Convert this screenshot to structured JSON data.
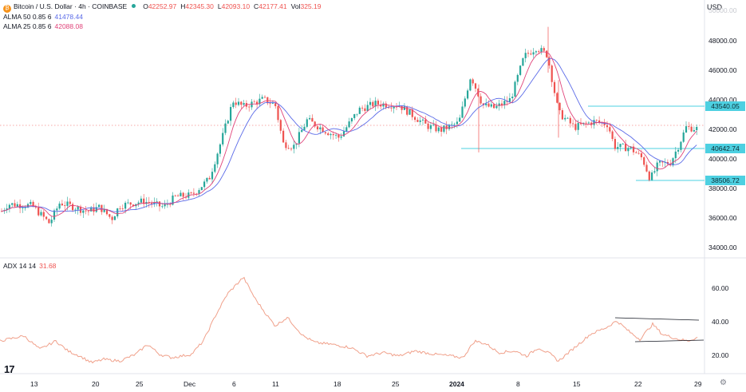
{
  "header": {
    "symbol_title": "Bitcoin / U.S. Dollar · 4h · COINBASE",
    "ohlc": [
      {
        "key": "O",
        "value": "42252.97"
      },
      {
        "key": "H",
        "value": "42345.30"
      },
      {
        "key": "L",
        "value": "42093.10"
      },
      {
        "key": "C",
        "value": "42177.41"
      },
      {
        "key": "Vol",
        "value": "325.19"
      }
    ],
    "indicators": [
      {
        "name": "ALMA 50 0.85 6",
        "value": "41478.44",
        "color": "#5b6be8"
      },
      {
        "name": "ALMA 25 0.85 6",
        "value": "42088.08",
        "color": "#e0447a"
      }
    ],
    "currency": "USD",
    "ghost_price": "50000.00"
  },
  "price_axis": {
    "ticks": [
      "48000.00",
      "46000.00",
      "44000.00",
      "42000.00",
      "40000.00",
      "38000.00",
      "36000.00",
      "34000.00"
    ],
    "tags": [
      "43540.05",
      "40642.74",
      "38506.72"
    ]
  },
  "adx_panel": {
    "label": "ADX 14 14",
    "value": "31.68",
    "ticks": [
      "60.00",
      "40.00",
      "20.00"
    ]
  },
  "time_axis": {
    "labels": [
      "13",
      "20",
      "25",
      "Dec",
      "6",
      "11",
      "18",
      "25",
      "2024",
      "8",
      "15",
      "22",
      "29"
    ]
  },
  "colors": {
    "up": "#26a69a",
    "down": "#ef5350",
    "alma50": "#5b6be8",
    "alma25": "#e0447a",
    "adx": "#f0a08a",
    "level": "#4dd0e1"
  },
  "branding": {
    "logo_text": "17"
  }
}
